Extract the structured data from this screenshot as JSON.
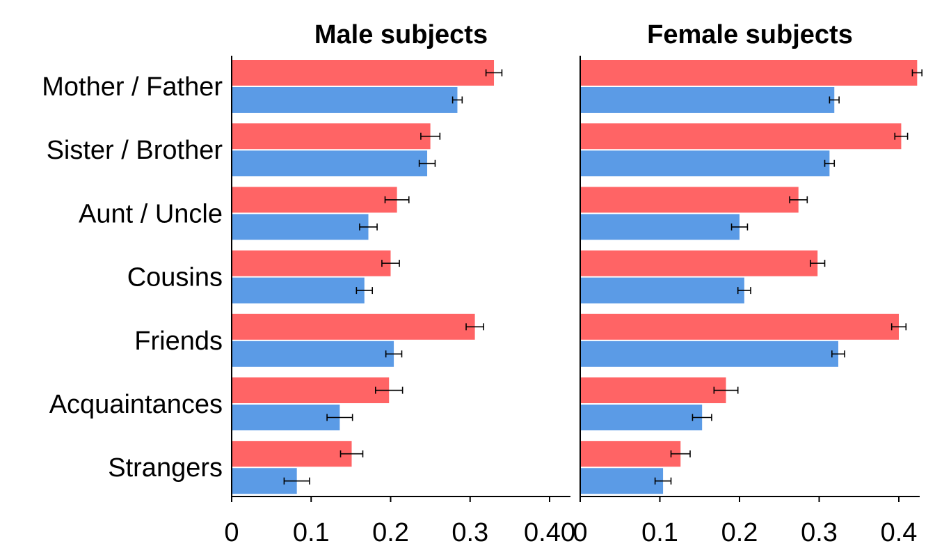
{
  "chart_data": [
    {
      "type": "bar",
      "orientation": "horizontal",
      "title": "Male subjects",
      "categories": [
        "Mother / Father",
        "Sister / Brother",
        "Aunt / Uncle",
        "Cousins",
        "Friends",
        "Acquaintances",
        "Strangers"
      ],
      "series": [
        {
          "color": "#ff6465",
          "values": [
            0.33,
            0.25,
            0.208,
            0.2,
            0.306,
            0.198,
            0.151
          ],
          "errors": [
            0.01,
            0.012,
            0.015,
            0.011,
            0.011,
            0.017,
            0.014
          ]
        },
        {
          "color": "#5b9be6",
          "values": [
            0.284,
            0.246,
            0.172,
            0.167,
            0.204,
            0.136,
            0.082
          ],
          "errors": [
            0.006,
            0.01,
            0.011,
            0.01,
            0.01,
            0.016,
            0.016
          ]
        }
      ],
      "xlim": [
        0,
        0.43
      ],
      "xticks": [
        0,
        0.1,
        0.2,
        0.3,
        0.4
      ],
      "xticklabels": [
        "0",
        "0.1",
        "0.2",
        "0.3",
        "0.40"
      ]
    },
    {
      "type": "bar",
      "orientation": "horizontal",
      "title": "Female subjects",
      "categories": [
        "Mother / Father",
        "Sister / Brother",
        "Aunt / Uncle",
        "Cousins",
        "Friends",
        "Acquaintances",
        "Strangers"
      ],
      "series": [
        {
          "color": "#ff6465",
          "values": [
            0.423,
            0.403,
            0.274,
            0.298,
            0.4,
            0.183,
            0.126
          ],
          "errors": [
            0.006,
            0.008,
            0.011,
            0.009,
            0.009,
            0.015,
            0.012
          ]
        },
        {
          "color": "#5b9be6",
          "values": [
            0.319,
            0.313,
            0.2,
            0.206,
            0.324,
            0.153,
            0.104
          ],
          "errors": [
            0.006,
            0.006,
            0.01,
            0.008,
            0.008,
            0.012,
            0.01
          ]
        }
      ],
      "xlim": [
        0,
        0.43
      ],
      "xticks": [
        0,
        0.1,
        0.2,
        0.3,
        0.4
      ],
      "xticklabels": [
        "0",
        "0.1",
        "0.2",
        "0.3",
        "0.4"
      ]
    }
  ]
}
